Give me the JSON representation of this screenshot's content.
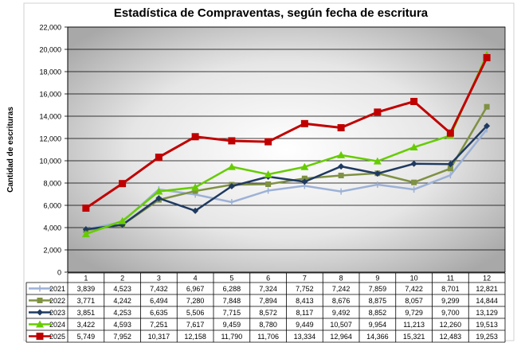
{
  "chart_data": {
    "type": "line",
    "title": "Estadística de Compraventas, según fecha de escritura",
    "ylabel": "Cantidad de escrituras",
    "xlabel": "",
    "ylim": [
      0,
      22000
    ],
    "yticks": [
      "0",
      "2,000",
      "4,000",
      "6,000",
      "8,000",
      "10,000",
      "12,000",
      "14,000",
      "16,000",
      "18,000",
      "20,000",
      "22,000"
    ],
    "categories": [
      "1",
      "2",
      "3",
      "4",
      "5",
      "6",
      "7",
      "8",
      "9",
      "10",
      "11",
      "12"
    ],
    "grid": true,
    "legend": "data-table-left",
    "series": [
      {
        "name": "2021",
        "color": "#9db1d6",
        "marker": "dash",
        "values": [
          3839,
          4523,
          7432,
          6967,
          6288,
          7324,
          7752,
          7242,
          7859,
          7422,
          8701,
          12821
        ],
        "labels": [
          "3,839",
          "4,523",
          "7,432",
          "6,967",
          "6,288",
          "7,324",
          "7,752",
          "7,242",
          "7,859",
          "7,422",
          "8,701",
          "12,821"
        ]
      },
      {
        "name": "2022",
        "color": "#7f9143",
        "marker": "square",
        "values": [
          3771,
          4242,
          6494,
          7280,
          7848,
          7894,
          8413,
          8676,
          8875,
          8057,
          9299,
          14844
        ],
        "labels": [
          "3,771",
          "4,242",
          "6,494",
          "7,280",
          "7,848",
          "7,894",
          "8,413",
          "8,676",
          "8,875",
          "8,057",
          "9,299",
          "14,844"
        ]
      },
      {
        "name": "2023",
        "color": "#1f3a60",
        "marker": "diamond",
        "values": [
          3851,
          4253,
          6635,
          5506,
          7715,
          8572,
          8117,
          9492,
          8852,
          9729,
          9700,
          13129
        ],
        "labels": [
          "3,851",
          "4,253",
          "6,635",
          "5,506",
          "7,715",
          "8,572",
          "8,117",
          "9,492",
          "8,852",
          "9,729",
          "9,700",
          "13,129"
        ]
      },
      {
        "name": "2024",
        "color": "#66cc00",
        "marker": "triangle",
        "values": [
          3422,
          4593,
          7251,
          7617,
          9459,
          8780,
          9449,
          10507,
          9954,
          11213,
          12260,
          19513
        ],
        "labels": [
          "3,422",
          "4,593",
          "7,251",
          "7,617",
          "9,459",
          "8,780",
          "9,449",
          "10,507",
          "9,954",
          "11,213",
          "12,260",
          "19,513"
        ]
      },
      {
        "name": "2025",
        "color": "#c00000",
        "marker": "square",
        "values": [
          5749,
          7952,
          10317,
          12158,
          11790,
          11706,
          13334,
          12964,
          14366,
          15321,
          12483,
          19253
        ],
        "labels": [
          "5,749",
          "7,952",
          "10,317",
          "12,158",
          "11,790",
          "11,706",
          "13,334",
          "12,964",
          "14,366",
          "15,321",
          "12,483",
          "19,253"
        ]
      }
    ]
  }
}
